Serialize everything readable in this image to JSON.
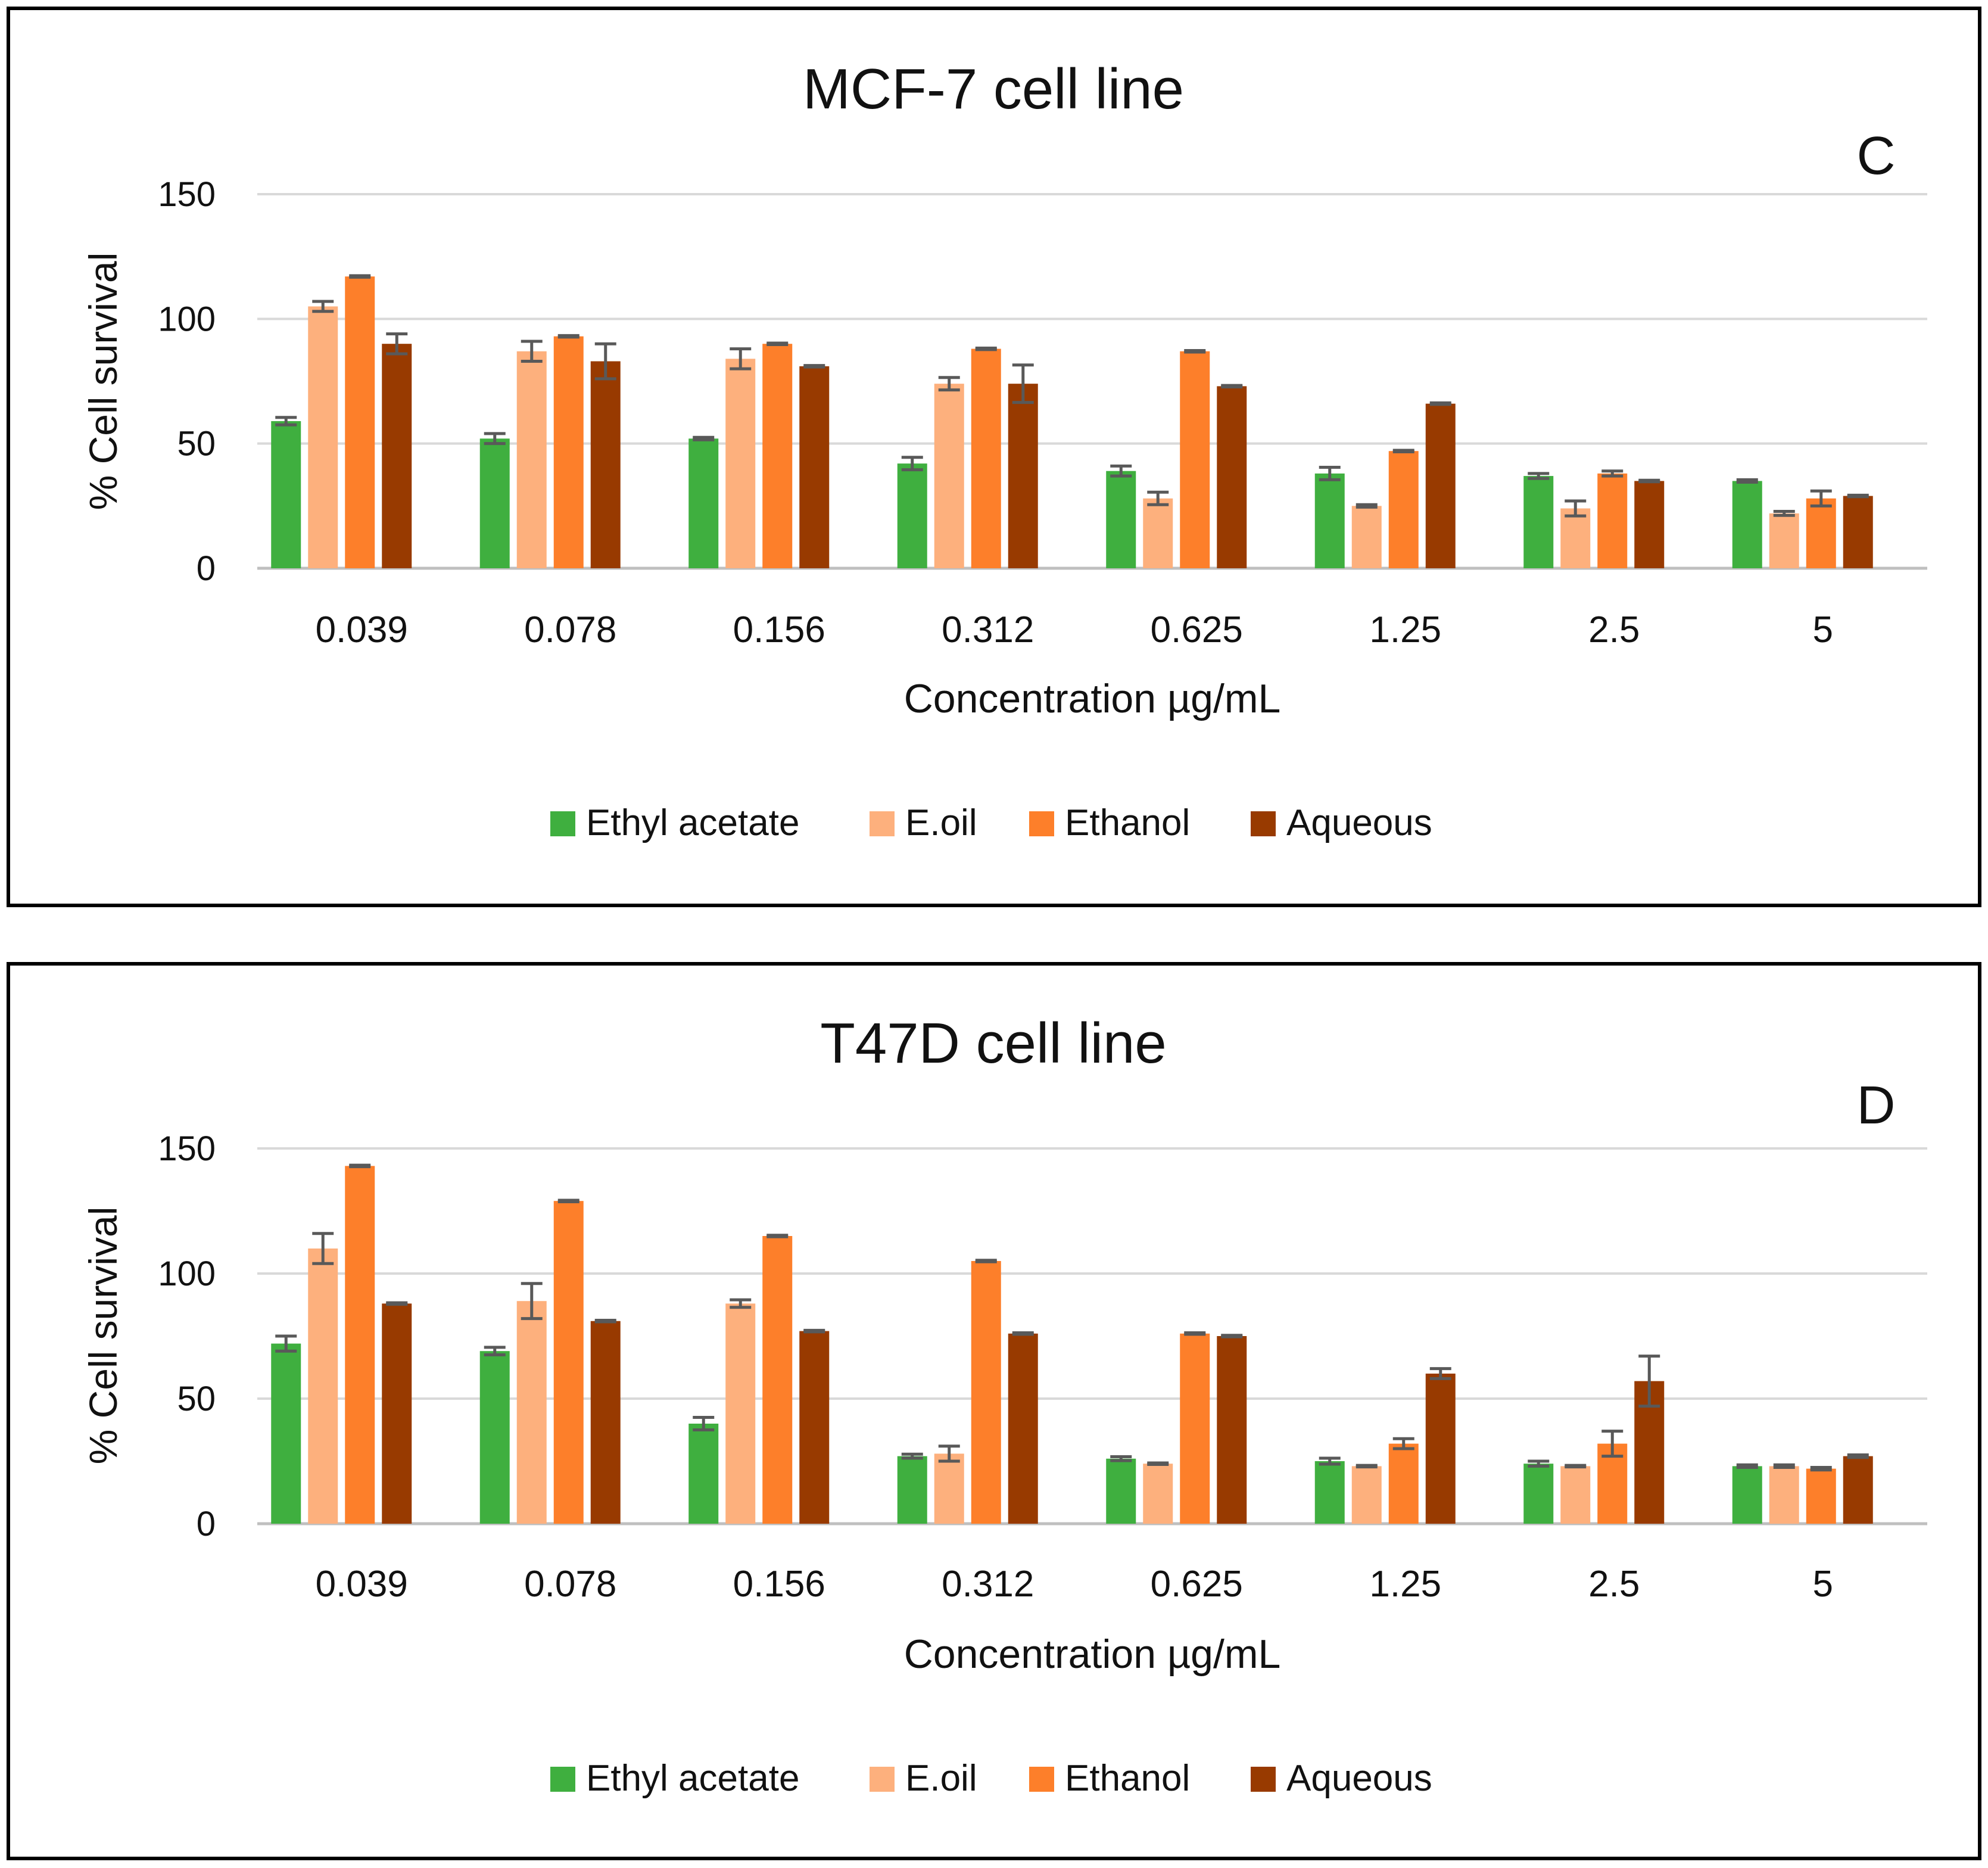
{
  "chart_data": [
    {
      "type": "bar",
      "title": "MCF-7 cell line",
      "panel_label": "C",
      "xlabel": "Concentration µg/mL",
      "ylabel": "% Cell survival",
      "ylim": [
        0,
        150
      ],
      "yticks": [
        0,
        50,
        100,
        150
      ],
      "grid": true,
      "legend_position": "bottom",
      "categories": [
        "0.039",
        "0.078",
        "0.156",
        "0.312",
        "0.625",
        "1.25",
        "2.5",
        "5"
      ],
      "series": [
        {
          "name": "Ethyl acetate",
          "color": "#3FAF3F",
          "values": [
            59,
            52,
            52,
            42,
            39,
            38,
            37,
            35
          ],
          "errors": [
            1.5,
            2,
            0.5,
            2.5,
            2,
            2.5,
            1,
            0.5
          ]
        },
        {
          "name": "E.oil",
          "color": "#FDB07D",
          "values": [
            105,
            87,
            84,
            74,
            28,
            25,
            24,
            22
          ],
          "errors": [
            2,
            4,
            4,
            2.5,
            2.5,
            0.5,
            3,
            0.8
          ]
        },
        {
          "name": "Ethanol",
          "color": "#FD7F2A",
          "values": [
            117,
            93,
            90,
            88,
            87,
            47,
            38,
            28
          ],
          "errors": [
            0.3,
            0.3,
            0.3,
            0.3,
            0.3,
            0.3,
            1,
            3
          ]
        },
        {
          "name": "Aqueous",
          "color": "#983A00",
          "values": [
            90,
            83,
            81,
            74,
            73,
            66,
            35,
            29
          ],
          "errors": [
            4,
            7,
            0.3,
            7.5,
            0.3,
            0.3,
            0.3,
            0.3
          ]
        }
      ]
    },
    {
      "type": "bar",
      "title": "T47D cell line",
      "panel_label": "D",
      "xlabel": "Concentration µg/mL",
      "ylabel": "% Cell survival",
      "ylim": [
        0,
        150
      ],
      "yticks": [
        0,
        50,
        100,
        150
      ],
      "grid": true,
      "legend_position": "bottom",
      "categories": [
        "0.039",
        "0.078",
        "0.156",
        "0.312",
        "0.625",
        "1.25",
        "2.5",
        "5"
      ],
      "series": [
        {
          "name": "Ethyl acetate",
          "color": "#3FAF3F",
          "values": [
            72,
            69,
            40,
            27,
            26,
            25,
            24,
            23
          ],
          "errors": [
            3,
            1.5,
            2.5,
            0.8,
            0.8,
            1.2,
            1,
            0.5
          ]
        },
        {
          "name": "E.oil",
          "color": "#FDB07D",
          "values": [
            110,
            89,
            88,
            28,
            24,
            23,
            23,
            23
          ],
          "errors": [
            6,
            7,
            1.5,
            3,
            0.3,
            0.3,
            0.3,
            0.5
          ]
        },
        {
          "name": "Ethanol",
          "color": "#FD7F2A",
          "values": [
            143,
            129,
            115,
            105,
            76,
            32,
            32,
            22
          ],
          "errors": [
            0.3,
            0.3,
            0.3,
            0.3,
            0.3,
            2,
            5,
            0.5
          ]
        },
        {
          "name": "Aqueous",
          "color": "#983A00",
          "values": [
            88,
            81,
            77,
            76,
            75,
            60,
            57,
            27
          ],
          "errors": [
            0.3,
            0.3,
            0.3,
            0.3,
            0.3,
            2,
            10,
            0.5
          ]
        }
      ]
    }
  ]
}
